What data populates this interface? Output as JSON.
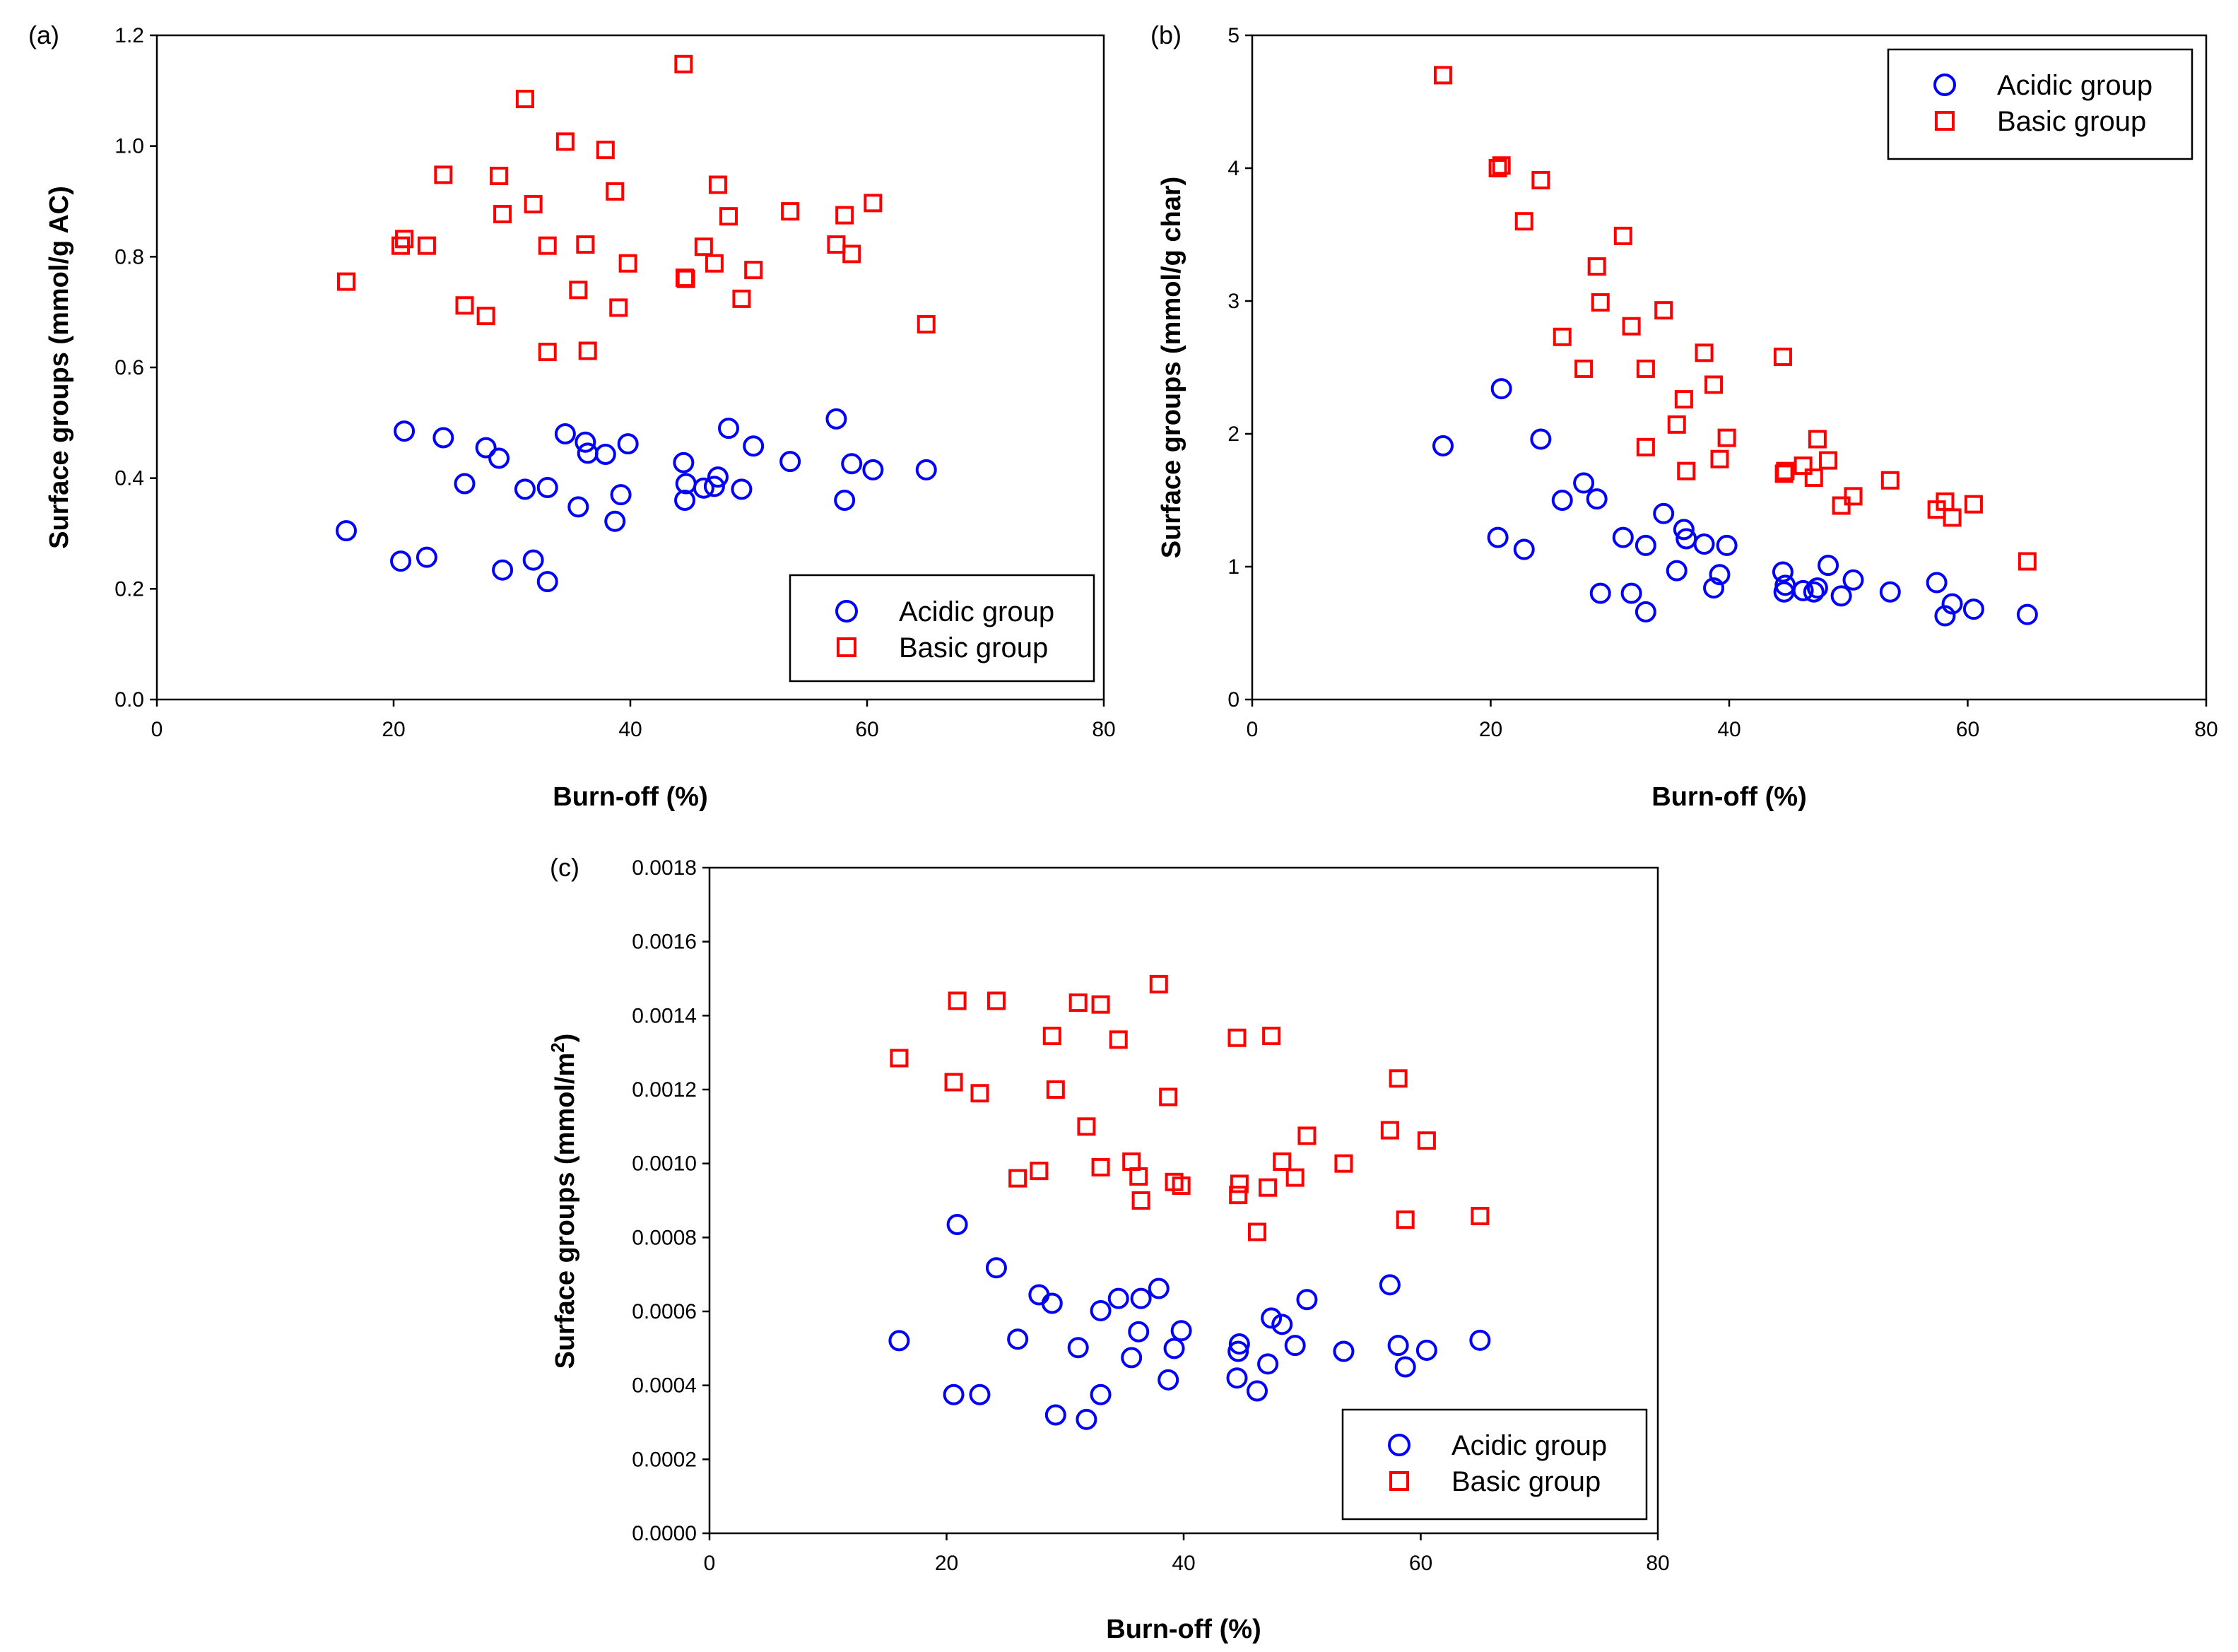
{
  "chart_data": [
    {
      "type": "scatter",
      "panel_label": "(a)",
      "xlabel": "Burn-off (%)",
      "ylabel": "Surface groups (mmol/g AC)",
      "ylabel_sup": "",
      "ylabel_tail": "",
      "xlim": [
        0,
        80
      ],
      "ylim": [
        0,
        1.2
      ],
      "x_ticks": [
        "0",
        "20",
        "40",
        "60",
        "80"
      ],
      "y_ticks": [
        "0.0",
        "0.2",
        "0.4",
        "0.6",
        "0.8",
        "1.0",
        "1.2"
      ],
      "grid": false,
      "legend_position": "bottom-right",
      "series": [
        {
          "name": "Acidic group",
          "marker": "circle",
          "color": "#0000ff",
          "x": [
            16.0,
            20.6,
            20.9,
            22.8,
            24.2,
            26.0,
            27.8,
            28.9,
            29.2,
            31.1,
            31.8,
            33.0,
            33.0,
            34.5,
            35.6,
            36.2,
            36.4,
            37.9,
            38.7,
            39.2,
            39.8,
            44.5,
            44.6,
            44.7,
            46.2,
            47.1,
            47.4,
            48.3,
            49.4,
            50.4,
            53.5,
            57.4,
            58.1,
            58.7,
            60.5,
            65.0
          ],
          "y": [
            0.305,
            0.25,
            0.485,
            0.257,
            0.473,
            0.39,
            0.455,
            0.436,
            0.234,
            0.38,
            0.252,
            0.213,
            0.383,
            0.48,
            0.348,
            0.465,
            0.445,
            0.443,
            0.322,
            0.37,
            0.462,
            0.428,
            0.36,
            0.39,
            0.382,
            0.385,
            0.402,
            0.49,
            0.38,
            0.458,
            0.43,
            0.507,
            0.36,
            0.426,
            0.415,
            0.415
          ]
        },
        {
          "name": "Basic group",
          "marker": "square",
          "color": "#ff0000",
          "x": [
            16.0,
            20.6,
            20.9,
            22.8,
            24.2,
            26.0,
            27.8,
            28.9,
            29.2,
            31.1,
            31.8,
            33.0,
            33.0,
            34.5,
            35.6,
            36.2,
            36.4,
            37.9,
            38.7,
            39.0,
            39.8,
            44.5,
            44.6,
            44.7,
            46.2,
            47.1,
            47.4,
            48.3,
            49.4,
            50.4,
            53.5,
            57.4,
            58.1,
            58.7,
            60.5,
            65.0
          ],
          "y": [
            0.755,
            0.82,
            0.832,
            0.82,
            0.948,
            0.712,
            0.693,
            0.946,
            0.877,
            1.085,
            0.895,
            0.628,
            0.82,
            1.008,
            0.74,
            0.822,
            0.63,
            0.993,
            0.918,
            0.708,
            0.788,
            1.148,
            0.762,
            0.76,
            0.818,
            0.788,
            0.93,
            0.873,
            0.724,
            0.776,
            0.882,
            0.822,
            0.875,
            0.805,
            0.897,
            0.678
          ]
        }
      ]
    },
    {
      "type": "scatter",
      "panel_label": "(b)",
      "xlabel": "Burn-off (%)",
      "ylabel": "Surface groups (mmol/g char)",
      "ylabel_sup": "",
      "ylabel_tail": "",
      "xlim": [
        0,
        80
      ],
      "ylim": [
        0,
        5
      ],
      "x_ticks": [
        "0",
        "20",
        "40",
        "60",
        "80"
      ],
      "y_ticks": [
        "0",
        "1",
        "2",
        "3",
        "4",
        "5"
      ],
      "grid": false,
      "legend_position": "top-right",
      "series": [
        {
          "name": "Acidic group",
          "marker": "circle",
          "color": "#0000ff",
          "x": [
            16.0,
            20.6,
            20.9,
            22.8,
            24.2,
            26.0,
            27.8,
            28.9,
            29.2,
            31.1,
            31.8,
            33.0,
            33.0,
            34.5,
            35.6,
            36.2,
            36.4,
            37.9,
            38.7,
            39.2,
            39.8,
            44.5,
            44.6,
            44.7,
            46.2,
            47.1,
            47.4,
            48.3,
            49.4,
            50.4,
            53.5,
            57.4,
            58.1,
            58.7,
            60.5,
            65.0
          ],
          "y": [
            1.91,
            1.22,
            2.34,
            1.13,
            1.96,
            1.5,
            1.63,
            1.51,
            0.8,
            1.22,
            0.8,
            0.66,
            1.16,
            1.4,
            0.97,
            1.28,
            1.21,
            1.17,
            0.84,
            0.94,
            1.16,
            0.96,
            0.81,
            0.86,
            0.82,
            0.81,
            0.84,
            1.01,
            0.78,
            0.9,
            0.81,
            0.88,
            0.63,
            0.72,
            0.68,
            0.64
          ]
        },
        {
          "name": "Basic group",
          "marker": "square",
          "color": "#ff0000",
          "x": [
            16.0,
            20.6,
            20.9,
            22.8,
            24.2,
            26.0,
            27.8,
            28.9,
            29.2,
            31.1,
            31.8,
            33.0,
            33.0,
            34.5,
            35.6,
            36.2,
            36.4,
            37.9,
            38.7,
            39.2,
            39.8,
            44.5,
            44.6,
            44.7,
            46.2,
            47.1,
            47.4,
            48.3,
            49.4,
            50.4,
            53.5,
            57.4,
            58.1,
            58.7,
            60.5,
            65.0
          ],
          "y": [
            4.7,
            4.0,
            4.02,
            3.6,
            3.91,
            2.73,
            2.49,
            3.26,
            2.99,
            3.49,
            2.81,
            1.9,
            2.49,
            2.93,
            2.07,
            2.26,
            1.72,
            2.61,
            2.37,
            1.81,
            1.97,
            2.58,
            1.7,
            1.72,
            1.76,
            1.67,
            1.96,
            1.8,
            1.46,
            1.53,
            1.65,
            1.43,
            1.49,
            1.37,
            1.47,
            1.04
          ]
        }
      ]
    },
    {
      "type": "scatter",
      "panel_label": "(c)",
      "xlabel": "Burn-off (%)",
      "ylabel": "Surface groups (mmol/m",
      "ylabel_sup": "2",
      "ylabel_tail": ")",
      "xlim": [
        0,
        80
      ],
      "ylim": [
        0,
        0.0018
      ],
      "x_ticks": [
        "0",
        "20",
        "40",
        "60",
        "80"
      ],
      "y_ticks": [
        "0.0000",
        "0.0002",
        "0.0004",
        "0.0006",
        "0.0008",
        "0.0010",
        "0.0012",
        "0.0014",
        "0.0016",
        "0.0018"
      ],
      "grid": false,
      "legend_position": "bottom-right",
      "series": [
        {
          "name": "Acidic group",
          "marker": "circle",
          "color": "#0000ff",
          "x": [
            16.0,
            20.6,
            20.9,
            22.8,
            24.2,
            26.0,
            27.8,
            28.9,
            29.2,
            31.1,
            31.8,
            33.0,
            33.0,
            34.5,
            35.6,
            36.2,
            36.4,
            37.9,
            38.7,
            39.2,
            39.8,
            44.5,
            44.6,
            44.7,
            46.2,
            47.1,
            47.4,
            48.3,
            49.4,
            50.4,
            53.5,
            57.4,
            58.1,
            58.7,
            60.5,
            65.0
          ],
          "y": [
            0.000521,
            0.000375,
            0.000835,
            0.000375,
            0.000718,
            0.000525,
            0.000645,
            0.000622,
            0.00032,
            0.000502,
            0.000308,
            0.000375,
            0.000602,
            0.000635,
            0.000475,
            0.000545,
            0.000635,
            0.000662,
            0.000415,
            0.0005,
            0.000548,
            0.00042,
            0.000492,
            0.000512,
            0.000385,
            0.000458,
            0.000582,
            0.000565,
            0.000508,
            0.000632,
            0.000492,
            0.000672,
            0.000508,
            0.00045,
            0.000495,
            0.000522
          ]
        },
        {
          "name": "Basic group",
          "marker": "square",
          "color": "#ff0000",
          "x": [
            16.0,
            20.6,
            20.9,
            22.8,
            24.2,
            26.0,
            27.8,
            28.9,
            29.2,
            31.1,
            31.8,
            33.0,
            33.0,
            34.5,
            35.6,
            36.2,
            36.4,
            37.9,
            38.7,
            39.2,
            39.8,
            44.5,
            44.6,
            44.7,
            46.2,
            47.1,
            47.4,
            48.3,
            49.4,
            50.4,
            53.5,
            57.4,
            58.1,
            58.7,
            60.5,
            65.0
          ],
          "y": [
            0.001285,
            0.00122,
            0.00144,
            0.00119,
            0.00144,
            0.00096,
            0.00098,
            0.001345,
            0.0012,
            0.001435,
            0.0011,
            0.00099,
            0.00143,
            0.001335,
            0.001005,
            0.000965,
            0.0009,
            0.001485,
            0.00118,
            0.00095,
            0.00094,
            0.00134,
            0.000915,
            0.000945,
            0.000815,
            0.000935,
            0.001345,
            0.001005,
            0.000962,
            0.001075,
            0.001,
            0.00109,
            0.00123,
            0.000848,
            0.001062,
            0.000858
          ]
        }
      ]
    }
  ]
}
